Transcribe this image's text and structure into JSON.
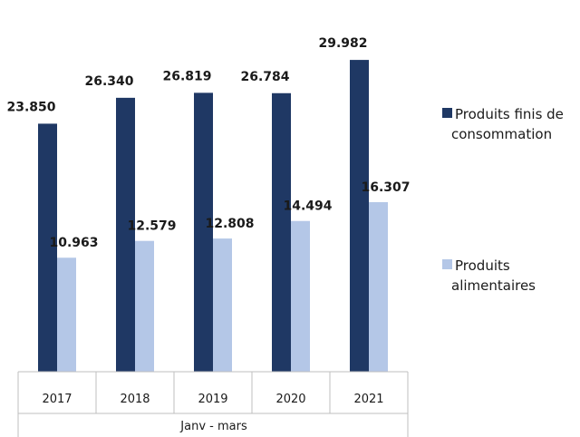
{
  "chart_data": {
    "type": "bar",
    "title": "",
    "xlabel": "Janv - mars",
    "ylabel": "",
    "categories": [
      "2017",
      "2018",
      "2019",
      "2020",
      "2021"
    ],
    "series": [
      {
        "name": "Produits finis de consommation",
        "color": "#1f3864",
        "values": [
          23.85,
          26.34,
          26.819,
          26.784,
          29.982
        ],
        "labels": [
          "23.850",
          "26.340",
          "26.819",
          "26.784",
          "29.982"
        ]
      },
      {
        "name": "Produits alimentaires",
        "color": "#b4c7e7",
        "values": [
          10.963,
          12.579,
          12.808,
          14.494,
          16.307
        ],
        "labels": [
          "10.963",
          "12.579",
          "12.808",
          "14.494",
          "16.307"
        ]
      }
    ],
    "ylim": [
      0,
      32
    ],
    "grid": false,
    "legend": "right"
  }
}
